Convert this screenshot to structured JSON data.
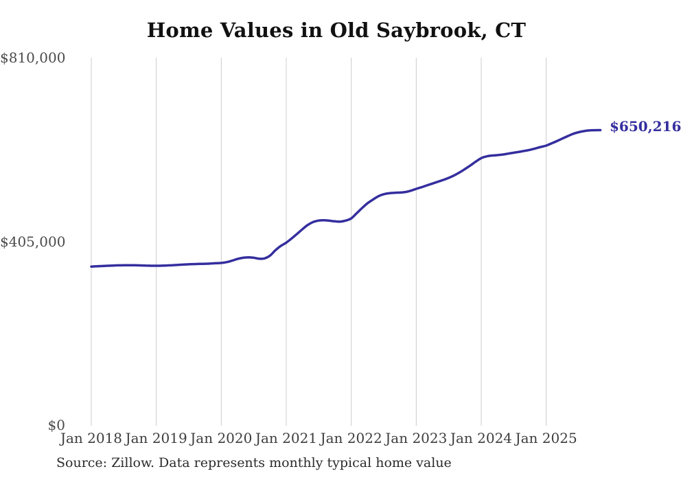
{
  "title": "Home Values in Old Saybrook, CT",
  "source_note": "Source: Zillow. Data represents monthly typical home value",
  "colors": {
    "line": "#342e9e",
    "end_label": "#342e9e",
    "grid": "#cccccc",
    "title_text": "#111111",
    "axis_text": "#4a4a4a",
    "background": "#ffffff"
  },
  "chart_data": {
    "type": "line",
    "title": "Home Values in Old Saybrook, CT",
    "xlabel": "",
    "ylabel": "",
    "ylim": [
      0,
      810000
    ],
    "grid": "vertical-only",
    "legend": "none",
    "frequency": "monthly",
    "x_start": "2018-01",
    "x_end": "2025-11",
    "x_ticks": [
      {
        "label": "Jan 2018",
        "month_index": 0
      },
      {
        "label": "Jan 2019",
        "month_index": 12
      },
      {
        "label": "Jan 2020",
        "month_index": 24
      },
      {
        "label": "Jan 2021",
        "month_index": 36
      },
      {
        "label": "Jan 2022",
        "month_index": 48
      },
      {
        "label": "Jan 2023",
        "month_index": 60
      },
      {
        "label": "Jan 2024",
        "month_index": 72
      },
      {
        "label": "Jan 2025",
        "month_index": 84
      }
    ],
    "y_ticks": [
      {
        "label": "$810,000",
        "value": 810000
      },
      {
        "label": "$405,000",
        "value": 405000
      },
      {
        "label": "$0",
        "value": 0
      }
    ],
    "end_label": "$650,216",
    "final_value": 650216,
    "series": [
      {
        "name": "Typical home value",
        "values": [
          349500,
          350100,
          350700,
          351200,
          351700,
          352100,
          352400,
          352500,
          352300,
          352000,
          351600,
          351300,
          351200,
          351400,
          351900,
          352500,
          353200,
          353900,
          354500,
          354900,
          355300,
          355700,
          356200,
          356800,
          357400,
          359300,
          362500,
          366200,
          368800,
          369800,
          368900,
          366800,
          367500,
          373500,
          385500,
          395000,
          402200,
          411500,
          421500,
          432000,
          441500,
          447800,
          450800,
          451500,
          450500,
          449200,
          448600,
          450800,
          455700,
          467000,
          478500,
          489000,
          497000,
          504500,
          509000,
          511200,
          512200,
          512600,
          513800,
          516800,
          520800,
          524500,
          528500,
          532500,
          536500,
          540500,
          545000,
          550500,
          557000,
          564500,
          572500,
          581000,
          588500,
          592500,
          594200,
          595200,
          596500,
          598500,
          600500,
          602500,
          604500,
          606800,
          609800,
          613200,
          616200,
          621200,
          626200,
          631800,
          637200,
          642200,
          645800,
          648200,
          649700,
          650100,
          650216
        ]
      }
    ]
  }
}
